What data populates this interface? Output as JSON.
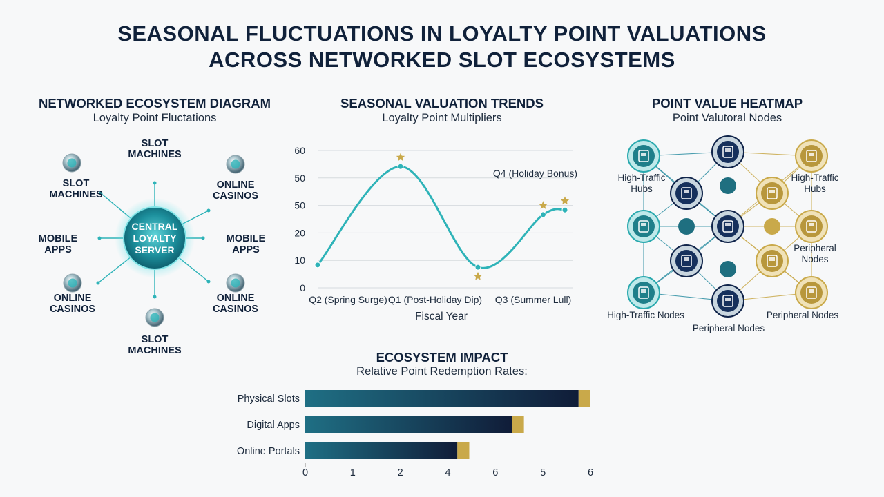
{
  "title_line1": "SEASONAL FLUCTUATIONS IN LOYALTY POINT VALUATIONS",
  "title_line2": "ACROSS NETWORKED SLOT ECOSYSTEMS",
  "colors": {
    "navy": "#10213a",
    "teal": "#2eb3b8",
    "gold": "#c9a94a",
    "dark_teal": "#1f6f80",
    "bar_dark": "#101c38",
    "bar_light": "#1f6f84"
  },
  "diagram": {
    "title": "NETWORKED ECOSYSTEM DIAGRAM",
    "subtitle": "Loyalty Point Fluctations",
    "center_label_lines": [
      "CENTRAL",
      "LOYALTY",
      "SERVER"
    ],
    "nodes": [
      {
        "lines": [
          "SLOT",
          "MACHINES"
        ],
        "icon": "orb-icon"
      },
      {
        "lines": [
          "ONLINE",
          "CASINOS"
        ],
        "icon": "chip-icon"
      },
      {
        "lines": [
          "MOBILE",
          "APPS"
        ],
        "icon": "none"
      },
      {
        "lines": [
          "ONLINE",
          "CASINOS"
        ],
        "icon": "chip-icon"
      },
      {
        "lines": [
          "SLOT",
          "MACHINES"
        ],
        "icon": "orb-icon"
      },
      {
        "lines": [
          "ONLINE",
          "CASINOS"
        ],
        "icon": "orb-icon"
      },
      {
        "lines": [
          "MOBILE",
          "APPS"
        ],
        "icon": "none"
      },
      {
        "lines": [
          "SLOT",
          "MACHINES"
        ],
        "icon": "orb-icon"
      }
    ]
  },
  "heatmap": {
    "title": "POINT VALUE HEATMAP",
    "subtitle": "Point Valutoral Nodes",
    "labels": {
      "top_left": [
        "High-Traffic",
        "Hubs"
      ],
      "top_right": [
        "High-Traffic",
        "Hubs"
      ],
      "mid_right": [
        "Peripheral",
        "Nodes"
      ],
      "bottom_left": [
        "High-Traffic Nodes"
      ],
      "bottom_center": [
        "Peripheral Nodes"
      ],
      "bottom_right": [
        "Peripheral Nodes"
      ]
    },
    "icon": "slot-machine-icon"
  },
  "chart_data": [
    {
      "type": "line",
      "title": "SEASONAL VALUATION TRENDS",
      "subtitle": "Loyalty Point Multipliers",
      "xlabel": "Fiscal Year",
      "ylabel": "",
      "x_tick_labels": [
        "Q2 (Spring Surge)",
        "Q1 (Post-Holiday Dip)",
        "Q3 (Summer Lull)"
      ],
      "y_tick_labels": [
        "0",
        "10",
        "20",
        "50",
        "50",
        "60"
      ],
      "ylim": [
        0,
        60
      ],
      "grid": true,
      "series": [
        {
          "points": [
            {
              "x": 0,
              "y": 10
            },
            {
              "x": 1.0,
              "y": 53
            },
            {
              "x": 2.0,
              "y": 9
            },
            {
              "x": 2.75,
              "y": 32
            },
            {
              "x": 3.0,
              "y": 34
            }
          ]
        }
      ],
      "annotations": [
        {
          "text": "Q4 (Holiday Bonus)"
        }
      ],
      "star_markers": [
        {
          "x": 1.0,
          "y": 57
        },
        {
          "x": 2.0,
          "y": 5
        },
        {
          "x": 2.75,
          "y": 36
        },
        {
          "x": 3.0,
          "y": 38
        }
      ]
    },
    {
      "type": "bar",
      "orientation": "horizontal",
      "title": "ECOSYSTEM IMPACT",
      "subtitle": "Relative Point Redemption Rates:",
      "categories": [
        "Physical Slots",
        "Digital Apps",
        "Online Portals"
      ],
      "values": [
        5.75,
        4.35,
        3.2
      ],
      "caps": [
        0.25,
        0.25,
        0.25
      ],
      "x_tick_labels": [
        "0",
        "1",
        "2",
        "4",
        "6",
        "5",
        "6"
      ],
      "xlim": [
        0,
        6
      ],
      "grid": false
    }
  ]
}
